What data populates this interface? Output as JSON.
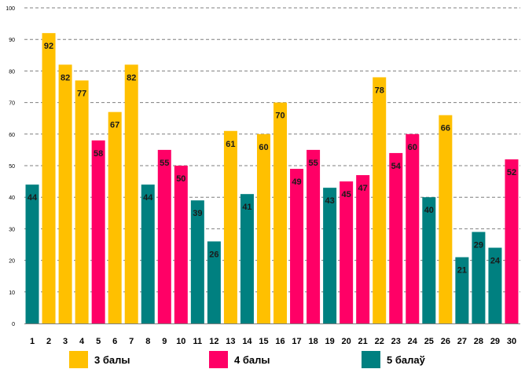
{
  "chart_data": {
    "type": "bar",
    "categories": [
      "1",
      "2",
      "3",
      "4",
      "5",
      "6",
      "7",
      "8",
      "9",
      "10",
      "11",
      "12",
      "13",
      "14",
      "15",
      "16",
      "17",
      "18",
      "19",
      "20",
      "21",
      "22",
      "23",
      "24",
      "25",
      "26",
      "27",
      "28",
      "29",
      "30"
    ],
    "values": [
      44,
      92,
      82,
      77,
      58,
      67,
      82,
      44,
      55,
      50,
      39,
      26,
      61,
      41,
      60,
      70,
      49,
      55,
      43,
      45,
      47,
      78,
      54,
      60,
      40,
      66,
      21,
      29,
      24,
      52
    ],
    "groups": [
      "5 балаў",
      "3 балы",
      "3 балы",
      "3 балы",
      "4 балы",
      "3 балы",
      "3 балы",
      "5 балаў",
      "4 балы",
      "4 балы",
      "5 балаў",
      "5 балаў",
      "3 балы",
      "5 балаў",
      "3 балы",
      "3 балы",
      "4 балы",
      "4 балы",
      "5 балаў",
      "4 балы",
      "4 балы",
      "3 балы",
      "4 балы",
      "4 балы",
      "5 балаў",
      "3 балы",
      "5 балаў",
      "5 балаў",
      "5 балаў",
      "4 балы"
    ],
    "series": [
      {
        "name": "3 балы",
        "color": "#FFC000"
      },
      {
        "name": "4 балы",
        "color": "#FF0066"
      },
      {
        "name": "5 балаў",
        "color": "#008080"
      }
    ],
    "yticks": [
      "0",
      "10",
      "20",
      "30",
      "40",
      "50",
      "60",
      "70",
      "80",
      "90",
      "100"
    ],
    "ylim": [
      0,
      100
    ],
    "grid": true,
    "legend_position": "bottom"
  }
}
